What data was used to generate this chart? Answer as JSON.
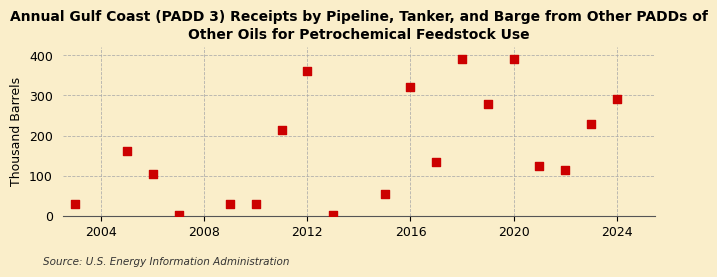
{
  "title_line1": "Annual Gulf Coast (PADD 3) Receipts by Pipeline, Tanker, and Barge from Other PADDs of",
  "title_line2": "Other Oils for Petrochemical Feedstock Use",
  "ylabel": "Thousand Barrels",
  "source": "Source: U.S. Energy Information Administration",
  "background_color": "#faeeca",
  "marker_color": "#cc0000",
  "marker_size": 36,
  "years": [
    2003,
    2005,
    2006,
    2007,
    2009,
    2010,
    2011,
    2012,
    2013,
    2015,
    2016,
    2017,
    2018,
    2019,
    2020,
    2021,
    2022,
    2023,
    2024
  ],
  "values": [
    30,
    162,
    105,
    2,
    30,
    30,
    215,
    362,
    2,
    55,
    322,
    135,
    390,
    278,
    392,
    125,
    115,
    230,
    292
  ],
  "xlim": [
    2002.5,
    2025.5
  ],
  "ylim": [
    0,
    420
  ],
  "yticks": [
    0,
    100,
    200,
    300,
    400
  ],
  "xticks": [
    2004,
    2008,
    2012,
    2016,
    2020,
    2024
  ],
  "grid_color": "#aaaaaa",
  "grid_linestyle": "--",
  "title_fontsize": 10,
  "axis_fontsize": 9,
  "source_fontsize": 7.5
}
